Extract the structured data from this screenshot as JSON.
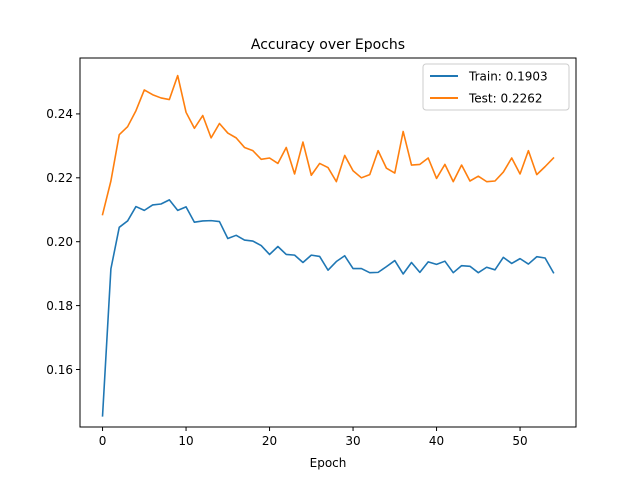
{
  "chart_data": {
    "type": "line",
    "title": "Accuracy over Epochs",
    "xlabel": "Epoch",
    "ylabel": "",
    "xlim": [
      -2.7,
      56.7
    ],
    "ylim": [
      0.142,
      0.2575
    ],
    "x_ticks": [
      0,
      10,
      20,
      30,
      40,
      50
    ],
    "y_ticks": [
      0.16,
      0.18,
      0.2,
      0.22,
      0.24
    ],
    "x_tick_labels": [
      "0",
      "10",
      "20",
      "30",
      "40",
      "50"
    ],
    "y_tick_labels": [
      "0.16",
      "0.18",
      "0.20",
      "0.22",
      "0.24"
    ],
    "grid": false,
    "legend_position": "top-right",
    "x": [
      0,
      1,
      2,
      3,
      4,
      5,
      6,
      7,
      8,
      9,
      10,
      11,
      12,
      13,
      14,
      15,
      16,
      17,
      18,
      19,
      20,
      21,
      22,
      23,
      24,
      25,
      26,
      27,
      28,
      29,
      30,
      31,
      32,
      33,
      34,
      35,
      36,
      37,
      38,
      39,
      40,
      41,
      42,
      43,
      44,
      45,
      46,
      47,
      48,
      49,
      50,
      51,
      52,
      53,
      54
    ],
    "series": [
      {
        "name": "Train: 0.1903",
        "color": "#1f77b4",
        "values": [
          0.1455,
          0.1915,
          0.2045,
          0.2065,
          0.211,
          0.2098,
          0.2115,
          0.2118,
          0.2131,
          0.2098,
          0.2109,
          0.2061,
          0.2065,
          0.2066,
          0.2063,
          0.201,
          0.202,
          0.2005,
          0.2002,
          0.1988,
          0.196,
          0.1985,
          0.196,
          0.1958,
          0.1935,
          0.1958,
          0.1954,
          0.1911,
          0.1938,
          0.1956,
          0.1916,
          0.1916,
          0.1903,
          0.1904,
          0.1922,
          0.1941,
          0.1899,
          0.1935,
          0.1904,
          0.1937,
          0.1929,
          0.1939,
          0.1903,
          0.1925,
          0.1923,
          0.1903,
          0.192,
          0.1912,
          0.1951,
          0.1932,
          0.1947,
          0.193,
          0.1953,
          0.1949,
          0.1903
        ]
      },
      {
        "name": "Test: 0.2262",
        "color": "#ff7f0e",
        "values": [
          0.2085,
          0.219,
          0.2335,
          0.236,
          0.241,
          0.2475,
          0.246,
          0.245,
          0.2445,
          0.252,
          0.2405,
          0.2355,
          0.2395,
          0.2325,
          0.237,
          0.234,
          0.2325,
          0.2295,
          0.2285,
          0.2258,
          0.2262,
          0.2245,
          0.2295,
          0.2212,
          0.2312,
          0.2208,
          0.2245,
          0.2232,
          0.2188,
          0.227,
          0.2222,
          0.22,
          0.221,
          0.2285,
          0.223,
          0.2215,
          0.2345,
          0.224,
          0.2242,
          0.2262,
          0.2198,
          0.2242,
          0.2188,
          0.224,
          0.219,
          0.2205,
          0.2188,
          0.219,
          0.2218,
          0.2262,
          0.2212,
          0.2285,
          0.221,
          0.2235,
          0.2262
        ]
      }
    ]
  }
}
